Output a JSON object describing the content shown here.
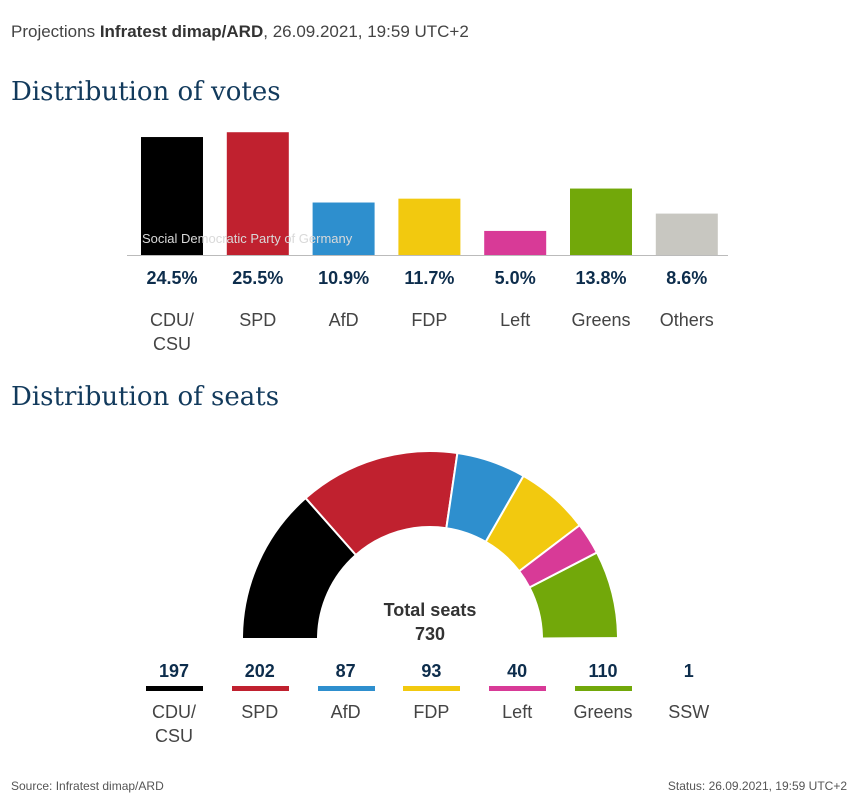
{
  "header": {
    "prefix": "Projections ",
    "source_bold": "Infratest dimap/ARD",
    "suffix": ", 26.09.2021, 19:59 UTC+2"
  },
  "hover_label": "Social Democratic Party of Germany",
  "chart_data": [
    {
      "type": "bar",
      "title": "Distribution of votes",
      "categories": [
        "CDU/\nCSU",
        "SPD",
        "AfD",
        "FDP",
        "Left",
        "Greens",
        "Others"
      ],
      "values": [
        24.5,
        25.5,
        10.9,
        11.7,
        5.0,
        13.8,
        8.6
      ],
      "value_labels": [
        "24.5%",
        "25.5%",
        "10.9%",
        "11.7%",
        "5.0%",
        "13.8%",
        "8.6%"
      ],
      "colors": [
        "#000000",
        "#c0212f",
        "#2e8fce",
        "#f2c90f",
        "#d83a97",
        "#72a80a",
        "#c8c7c1"
      ],
      "ylim": [
        0,
        27
      ]
    },
    {
      "type": "semicircle",
      "title": "Distribution of seats",
      "categories": [
        "CDU/\nCSU",
        "SPD",
        "AfD",
        "FDP",
        "Left",
        "Greens",
        "SSW"
      ],
      "values": [
        197,
        202,
        87,
        93,
        40,
        110,
        1
      ],
      "colors": [
        "#000000",
        "#c0212f",
        "#2e8fce",
        "#f2c90f",
        "#d83a97",
        "#72a80a",
        "#c8c7c1"
      ],
      "total_label": "Total seats",
      "total": "730"
    }
  ],
  "footer": {
    "source": "Source: Infratest dimap/ARD",
    "status": "Status: 26.09.2021, 19:59 UTC+2"
  }
}
